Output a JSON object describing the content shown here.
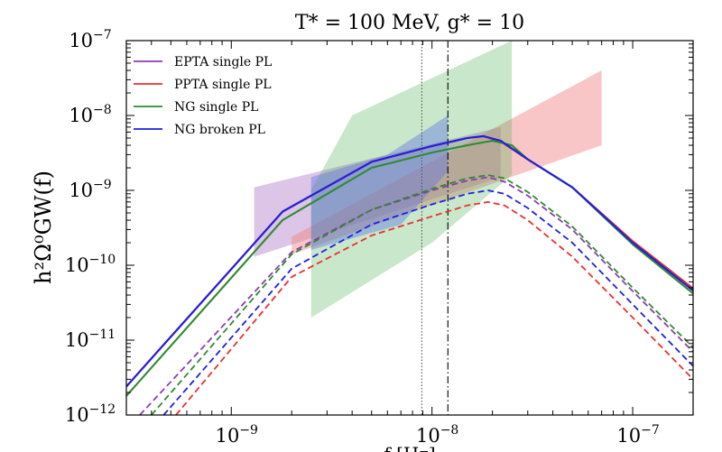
{
  "chart_data": {
    "type": "line",
    "title": "T* = 100 MeV, g* = 10",
    "ylabel": "h²Ω⁰GW(f)",
    "xlabel": "f [Hz]",
    "x_scale": "log",
    "y_scale": "log",
    "xlim": [
      3e-10,
      2e-07
    ],
    "ylim": [
      1e-12,
      1e-07
    ],
    "x_ticks": [
      1e-09,
      1e-08,
      1e-07
    ],
    "x_tick_labels": [
      {
        "base": "10",
        "exp": "−9"
      },
      {
        "base": "10",
        "exp": "−8"
      },
      {
        "base": "10",
        "exp": "−7"
      }
    ],
    "y_ticks": [
      1e-12,
      1e-11,
      1e-10,
      1e-09,
      1e-08,
      1e-07
    ],
    "y_tick_labels": [
      {
        "base": "10",
        "exp": "−12"
      },
      {
        "base": "10",
        "exp": "−11"
      },
      {
        "base": "10",
        "exp": "−10"
      },
      {
        "base": "10",
        "exp": "−9"
      },
      {
        "base": "10",
        "exp": "−8"
      },
      {
        "base": "10",
        "exp": "−7"
      }
    ],
    "vertical_lines": [
      {
        "x": 8.9e-09,
        "style": "dotted",
        "color": "#555555"
      },
      {
        "x": 1.2e-08,
        "style": "dashdot",
        "color": "#000000"
      }
    ],
    "legend": {
      "placement": "top-left",
      "entries": [
        {
          "label": "EPTA single PL",
          "color": "#8e3bb0"
        },
        {
          "label": "PPTA single PL",
          "color": "#e8312d"
        },
        {
          "label": "NG single PL",
          "color": "#2e8b2e"
        },
        {
          "label": "NG broken PL",
          "color": "#1f1fe0"
        }
      ]
    },
    "bands": [
      {
        "name": "EPTA single PL",
        "color": "#9b59b6",
        "opacity": 0.35,
        "upper": [
          [
            1.3e-09,
            1.1e-09
          ],
          [
            2.2e-08,
            7e-09
          ]
        ],
        "lower": [
          [
            1.3e-09,
            1.3e-10
          ],
          [
            2.2e-08,
            1.5e-09
          ]
        ]
      },
      {
        "name": "PPTA single PL",
        "color": "#f08080",
        "opacity": 0.45,
        "upper": [
          [
            2e-09,
            2.4e-10
          ],
          [
            7e-08,
            4e-08
          ]
        ],
        "lower": [
          [
            2e-09,
            1.4e-10
          ],
          [
            7e-08,
            4e-09
          ]
        ]
      },
      {
        "name": "NG single PL",
        "color": "#4caf50",
        "opacity": 0.3,
        "upper": [
          [
            2.5e-09,
            1e-09
          ],
          [
            4e-09,
            1e-08
          ],
          [
            2.5e-08,
            1e-07
          ]
        ],
        "lower": [
          [
            2.5e-09,
            2e-11
          ],
          [
            1e-08,
            2e-10
          ],
          [
            2.5e-08,
            1.6e-09
          ]
        ]
      },
      {
        "name": "NG broken PL",
        "color": "#5b6ee8",
        "opacity": 0.4,
        "upper": [
          [
            2.5e-09,
            1.5e-09
          ],
          [
            6e-09,
            3e-09
          ],
          [
            1.2e-08,
            1e-08
          ]
        ],
        "lower": [
          [
            2.5e-09,
            1.6e-10
          ],
          [
            7e-09,
            3.5e-10
          ],
          [
            1.2e-08,
            1.8e-09
          ]
        ]
      }
    ],
    "series": [
      {
        "name": "EPTA single PL",
        "color": "#8e3bb0",
        "style": "solid",
        "x": [
          3e-10,
          1.8e-09,
          5e-09,
          1e-08,
          1.5e-08,
          1.8e-08,
          2.2e-08,
          3e-08,
          5e-08,
          1e-07,
          2e-07
        ],
        "y": [
          2.4e-12,
          5.2e-10,
          2.4e-09,
          3.9e-09,
          5e-09,
          5.3e-09,
          4.5e-09,
          2.6e-09,
          1.1e-09,
          2e-10,
          4.6e-11
        ]
      },
      {
        "name": "PPTA single PL",
        "color": "#e8312d",
        "style": "solid",
        "x": [
          3e-10,
          1.8e-09,
          5e-09,
          1e-08,
          1.5e-08,
          1.8e-08,
          2.2e-08,
          3e-08,
          5e-08,
          1e-07,
          2e-07
        ],
        "y": [
          2.4e-12,
          5.2e-10,
          2.4e-09,
          3.9e-09,
          5e-09,
          5.3e-09,
          4.5e-09,
          2.6e-09,
          1.1e-09,
          2.1e-10,
          4.9e-11
        ]
      },
      {
        "name": "NG single PL",
        "color": "#2e8b2e",
        "style": "solid",
        "x": [
          3e-10,
          1.8e-09,
          5e-09,
          1e-08,
          1.5e-08,
          2e-08,
          2.5e-08,
          3e-08,
          5e-08,
          1e-07,
          2e-07
        ],
        "y": [
          1.8e-12,
          4e-10,
          2e-09,
          3.2e-09,
          4e-09,
          4.6e-09,
          4e-09,
          2.6e-09,
          1.1e-09,
          1.9e-10,
          4.2e-11
        ]
      },
      {
        "name": "NG broken PL",
        "color": "#1f1fe0",
        "style": "solid",
        "x": [
          3e-10,
          1.8e-09,
          5e-09,
          1e-08,
          1.5e-08,
          1.8e-08,
          2.2e-08,
          3e-08,
          5e-08,
          1e-07,
          2e-07
        ],
        "y": [
          2.4e-12,
          5.2e-10,
          2.4e-09,
          3.9e-09,
          5e-09,
          5.3e-09,
          4.6e-09,
          2.6e-09,
          1.1e-09,
          2e-10,
          4.6e-11
        ]
      },
      {
        "name": "EPTA single PL",
        "color": "#8e3bb0",
        "style": "dashed",
        "x": [
          3.5e-10,
          2e-09,
          5e-09,
          1e-08,
          1.5e-08,
          1.9e-08,
          2.3e-08,
          3e-08,
          5e-08,
          1e-07,
          2e-07
        ],
        "y": [
          1e-12,
          1.5e-10,
          5.5e-10,
          1e-09,
          1.35e-09,
          1.5e-09,
          1.3e-09,
          8.5e-10,
          3e-10,
          4.5e-11,
          7e-12
        ]
      },
      {
        "name": "PPTA single PL",
        "color": "#e8312d",
        "style": "dashed",
        "x": [
          5.3e-10,
          2e-09,
          5e-09,
          1e-08,
          1.5e-08,
          1.9e-08,
          2.3e-08,
          3e-08,
          5e-08,
          1e-07,
          2e-07
        ],
        "y": [
          1e-12,
          7e-11,
          2.5e-10,
          4.5e-10,
          6.3e-10,
          7e-10,
          6.3e-10,
          4e-10,
          1.3e-10,
          2e-11,
          3e-12
        ]
      },
      {
        "name": "NG single PL",
        "color": "#2e8b2e",
        "style": "dashed",
        "x": [
          4e-10,
          2e-09,
          5e-09,
          1e-08,
          1.5e-08,
          1.9e-08,
          2.3e-08,
          3e-08,
          5e-08,
          1e-07,
          2e-07
        ],
        "y": [
          1e-12,
          1.4e-10,
          5.5e-10,
          1.05e-09,
          1.45e-09,
          1.6e-09,
          1.45e-09,
          9.5e-10,
          3.3e-10,
          5e-11,
          8e-12
        ]
      },
      {
        "name": "NG broken PL",
        "color": "#1f1fe0",
        "style": "dashed",
        "x": [
          4.6e-10,
          2e-09,
          5e-09,
          1e-08,
          1.5e-08,
          1.9e-08,
          2.3e-08,
          3e-08,
          5e-08,
          1e-07,
          2e-07
        ],
        "y": [
          1e-12,
          9e-11,
          3.5e-10,
          6.5e-10,
          9e-10,
          1e-09,
          9e-10,
          5.8e-10,
          2e-10,
          3e-11,
          4.5e-12
        ]
      }
    ]
  }
}
